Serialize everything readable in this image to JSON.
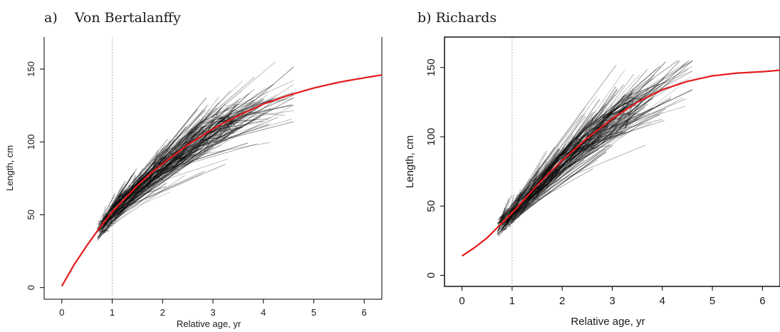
{
  "panels": [
    {
      "label": "a)",
      "title": "Von Bertalanffy"
    },
    {
      "label": "b)",
      "title": "Richards"
    }
  ],
  "chart_data": [
    {
      "type": "line",
      "title": "a)    Von Bertalanffy",
      "xlabel": "Relative age, yr",
      "ylabel": "Length, cm",
      "xlim": [
        -0.35,
        6.35
      ],
      "ylim": [
        -8,
        172
      ],
      "xticks": [
        0,
        1,
        2,
        3,
        4,
        5,
        6
      ],
      "yticks": [
        0,
        50,
        100,
        150
      ],
      "reference_line_x": 1,
      "series": [
        {
          "kind": "fitted-curve",
          "color": "#e31a1c",
          "x": [
            0,
            0.25,
            0.5,
            0.75,
            1,
            1.25,
            1.5,
            1.75,
            2,
            2.5,
            3,
            3.5,
            4,
            4.5,
            5,
            5.5,
            6,
            6.35
          ],
          "y": [
            1,
            16,
            29,
            41,
            52,
            61,
            70,
            78,
            85,
            98,
            109,
            118,
            126,
            132,
            137,
            141,
            144,
            146
          ]
        },
        {
          "kind": "individual-growth-segments",
          "color": "#000000",
          "opacity": 0.3,
          "count": 420,
          "age_range": [
            0.6,
            4.6
          ],
          "length_range": [
            25,
            155
          ]
        }
      ]
    },
    {
      "type": "line",
      "title": "b) Richards",
      "xlabel": "Relative age, yr",
      "ylabel": "Length, cm",
      "xlim": [
        -0.35,
        6.35
      ],
      "ylim": [
        -8,
        172
      ],
      "xticks": [
        0,
        1,
        2,
        3,
        4,
        5,
        6
      ],
      "yticks": [
        0,
        50,
        100,
        150
      ],
      "reference_line_x": 1,
      "series": [
        {
          "kind": "fitted-curve",
          "color": "#e31a1c",
          "x": [
            0,
            0.25,
            0.5,
            0.75,
            1,
            1.25,
            1.5,
            1.75,
            2,
            2.5,
            3,
            3.5,
            4,
            4.5,
            5,
            5.5,
            6,
            6.35
          ],
          "y": [
            14,
            20,
            27,
            36,
            45,
            55,
            65,
            74,
            83,
            99,
            113,
            125,
            134,
            140,
            144,
            146,
            147,
            148
          ]
        },
        {
          "kind": "individual-growth-segments",
          "color": "#000000",
          "opacity": 0.3,
          "count": 420,
          "age_range": [
            0.6,
            4.6
          ],
          "length_range": [
            25,
            155
          ]
        }
      ]
    }
  ]
}
